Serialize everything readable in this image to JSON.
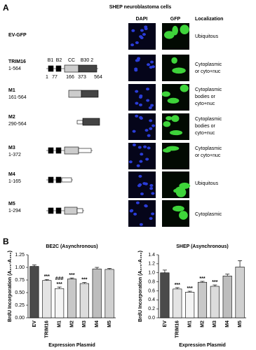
{
  "panel_a": {
    "label": "A",
    "title": "SHEP  neuroblastoma cells",
    "headers": [
      "DAPI",
      "GFP",
      "Localization"
    ],
    "rows": [
      {
        "name": "EV-GFP",
        "localization": [
          "Ubiquitous"
        ]
      },
      {
        "name": "TRIM16",
        "range": "1-564",
        "domain_labels": [
          "B1",
          "B2",
          "CC",
          "B30 2"
        ],
        "positions": [
          "1",
          "77",
          "166",
          "373",
          "564"
        ],
        "localization": [
          "Cytoplasmic",
          "or cyto+nuc"
        ]
      },
      {
        "name": "M1",
        "range": "161-564",
        "localization": [
          "Cytoplasmic",
          "bodies or",
          "cyto+nuc"
        ]
      },
      {
        "name": "M2",
        "range": "290-564",
        "localization": [
          "Cytoplasmic",
          "bodies or",
          "cyto+nuc"
        ]
      },
      {
        "name": "M3",
        "range": "1-372",
        "localization": [
          "Cytoplasmic",
          "or cyto+nuc"
        ]
      },
      {
        "name": "M4",
        "range": "1-165",
        "localization": [
          "Ubiquitous"
        ]
      },
      {
        "name": "M5",
        "range": "1-294",
        "localization": [
          "Cytoplasmic"
        ]
      }
    ]
  },
  "panel_b": {
    "label": "B"
  },
  "chart_data": [
    {
      "type": "bar",
      "title": "BE2C (Asynchronous)",
      "ylabel": "BrdU Incorporation (A₃₇₀-A₄₉₂)",
      "xlabel": "Expression Plasmid",
      "categories": [
        "EV",
        "TRIM16",
        "M1",
        "M2",
        "M3",
        "M4",
        "M5"
      ],
      "values": [
        1.02,
        0.74,
        0.58,
        0.77,
        0.68,
        0.97,
        0.96
      ],
      "errors": [
        0.03,
        0.02,
        0.03,
        0.02,
        0.02,
        0.03,
        0.02
      ],
      "colors": [
        "#4a4a4a",
        "#e4e4e4",
        "#f4f4f4",
        "#c8c8c8",
        "#dcdcdc",
        "#bdbdbd",
        "#d0d0d0"
      ],
      "annotations": [
        [],
        [
          "***"
        ],
        [
          "###",
          "***"
        ],
        [
          "***"
        ],
        [
          "***"
        ],
        [],
        []
      ],
      "ylim": [
        0,
        1.25
      ],
      "yticks": [
        {
          "value": 0,
          "label": "0.00"
        },
        0.25,
        {
          "value": 0.5,
          "label": "0.50"
        },
        0.75,
        {
          "value": 1,
          "label": "1.00"
        },
        1.25
      ]
    },
    {
      "type": "bar",
      "title": "SHEP (Asynchronous)",
      "ylabel": "BrdU Incorporation (A₃₇₀-A₄₉₂)",
      "xlabel": "Expression Plasmid",
      "categories": [
        "EV",
        "TRIM16",
        "M1",
        "M2",
        "M3",
        "M4",
        "M5"
      ],
      "values": [
        1.0,
        0.64,
        0.57,
        0.79,
        0.7,
        0.93,
        1.13
      ],
      "errors": [
        0.06,
        0.03,
        0.02,
        0.02,
        0.03,
        0.04,
        0.14
      ],
      "colors": [
        "#4a4a4a",
        "#e4e4e4",
        "#f4f4f4",
        "#c8c8c8",
        "#dcdcdc",
        "#bdbdbd",
        "#d0d0d0"
      ],
      "annotations": [
        [],
        [
          "***"
        ],
        [
          "***"
        ],
        [
          "***"
        ],
        [
          "***"
        ],
        [],
        []
      ],
      "ylim": [
        0,
        1.4
      ],
      "yticks": [
        {
          "value": 0,
          "label": "0.0"
        },
        0.2,
        0.4,
        0.6,
        0.8,
        {
          "value": 1,
          "label": "1.0"
        },
        1.2,
        1.4
      ]
    }
  ]
}
